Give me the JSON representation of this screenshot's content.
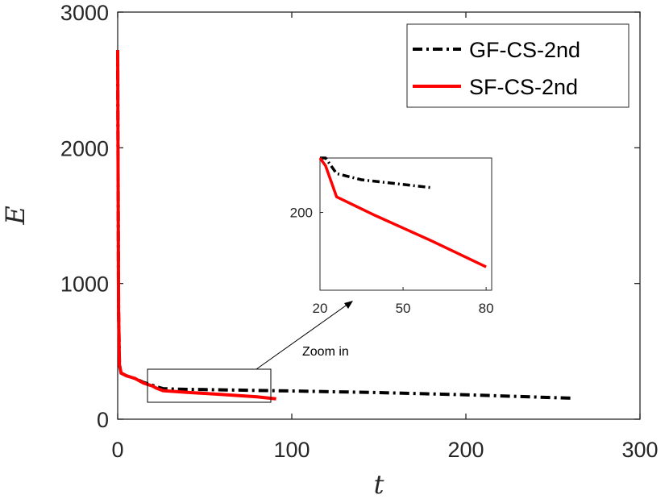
{
  "chart_data": {
    "type": "line",
    "xlabel": "t",
    "ylabel": "E",
    "xlim": [
      0,
      300
    ],
    "ylim": [
      0,
      3000
    ],
    "xticks": [
      "0",
      "100",
      "200",
      "300"
    ],
    "yticks": [
      "0",
      "1000",
      "2000",
      "3000"
    ],
    "grid": false,
    "legend_position": "top-right",
    "series": [
      {
        "name": "GF-CS-2nd",
        "color": "#000000",
        "style": "dash-dot",
        "x": [
          0,
          0.5,
          1,
          2,
          5,
          10,
          15,
          20,
          22,
          26,
          35,
          60,
          100,
          150,
          200,
          260
        ],
        "y": [
          2720,
          800,
          400,
          340,
          320,
          300,
          270,
          250,
          240,
          225,
          221,
          216,
          208,
          196,
          180,
          155
        ]
      },
      {
        "name": "SF-CS-2nd",
        "color": "#ff0000",
        "style": "solid",
        "x": [
          0,
          0.5,
          1,
          2,
          5,
          10,
          15,
          20,
          22,
          26,
          40,
          60,
          80,
          91
        ],
        "y": [
          2720,
          800,
          400,
          340,
          320,
          300,
          265,
          245,
          230,
          210,
          198,
          182,
          165,
          150
        ]
      }
    ],
    "inset": {
      "xlim": [
        20,
        82
      ],
      "ylim": [
        150,
        235
      ],
      "xticks": [
        "20",
        "50",
        "80"
      ],
      "yticks": [
        "200"
      ],
      "annotation": "Zoom in"
    }
  }
}
